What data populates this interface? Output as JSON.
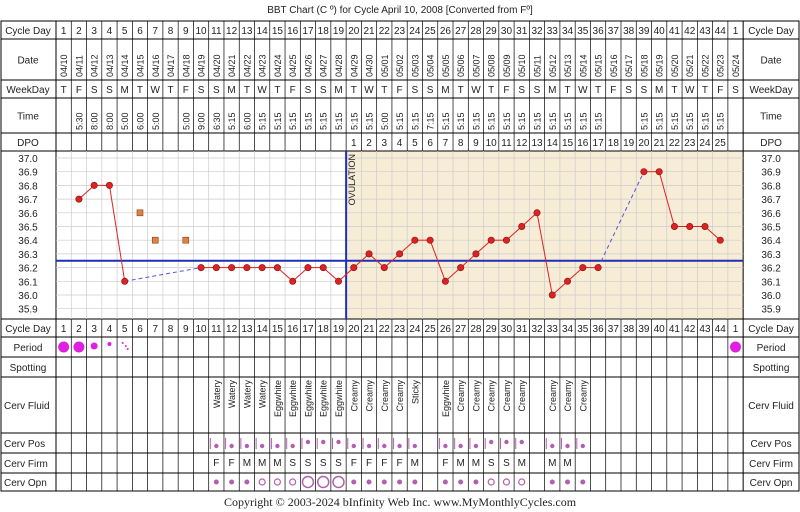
{
  "title": "BBT Chart (C º) for Cycle April 10, 2008  [Converted from Fº]",
  "footer": "Copyright © 2003-2024 bInfinity Web Inc.     www.MyMonthlyCycles.com",
  "row_labels": {
    "cycle_day": "Cycle Day",
    "date": "Date",
    "weekday": "WeekDay",
    "time": "Time",
    "dpo": "DPO",
    "period": "Period",
    "spotting": "Spotting",
    "cerv_fluid": "Cerv Fluid",
    "cerv_pos": "Cerv Pos",
    "cerv_firm": "Cerv Firm",
    "cerv_opn": "Cerv Opn"
  },
  "ovulation_label": "OVULATION",
  "colors": {
    "line": "#dd2222",
    "dot": "#dd2222",
    "coverline": "#1e2fb8",
    "ovulation_line": "#1e2fb8",
    "luteal_bg": "#f7ecd6",
    "grid": "#cccccc",
    "period": "#e020e0",
    "cerv": "#b060b0",
    "open_marker": "#e08040"
  },
  "chart_data": {
    "type": "line",
    "cycle_days": [
      1,
      2,
      3,
      4,
      5,
      6,
      7,
      8,
      9,
      10,
      11,
      12,
      13,
      14,
      15,
      16,
      17,
      18,
      19,
      20,
      21,
      22,
      23,
      24,
      25,
      26,
      27,
      28,
      29,
      30,
      31,
      32,
      33,
      34,
      35,
      36,
      37,
      38,
      39,
      40,
      41,
      42,
      43,
      44,
      1
    ],
    "dates": [
      "04/10",
      "04/11",
      "04/12",
      "04/13",
      "04/14",
      "04/15",
      "04/16",
      "04/17",
      "04/18",
      "04/19",
      "04/20",
      "04/21",
      "04/22",
      "04/23",
      "04/24",
      "04/25",
      "04/26",
      "04/27",
      "04/28",
      "04/29",
      "04/30",
      "05/01",
      "05/02",
      "05/03",
      "05/04",
      "05/05",
      "05/06",
      "05/07",
      "05/08",
      "05/09",
      "05/10",
      "05/11",
      "05/12",
      "05/13",
      "05/14",
      "05/15",
      "05/16",
      "05/17",
      "05/18",
      "05/19",
      "05/20",
      "05/21",
      "05/22",
      "05/23",
      "05/24"
    ],
    "weekdays": [
      "T",
      "F",
      "S",
      "S",
      "M",
      "T",
      "W",
      "T",
      "F",
      "S",
      "S",
      "M",
      "T",
      "W",
      "T",
      "F",
      "S",
      "S",
      "M",
      "T",
      "W",
      "T",
      "F",
      "S",
      "S",
      "M",
      "T",
      "W",
      "T",
      "F",
      "S",
      "S",
      "M",
      "T",
      "W",
      "T",
      "F",
      "S",
      "S",
      "M",
      "T",
      "W",
      "T",
      "F",
      "S"
    ],
    "times": [
      "",
      "5:30",
      "8:00",
      "8:00",
      "5:00",
      "6:00",
      "5:00",
      "",
      "5:00",
      "9:00",
      "6:30",
      "5:15",
      "6:00",
      "5:15",
      "5:15",
      "5:15",
      "5:15",
      "5:15",
      "5:15",
      "5:15",
      "5:15",
      "5:00",
      "5:15",
      "5:15",
      "7:15",
      "5:15",
      "5:15",
      "5:15",
      "5:15",
      "5:15",
      "5:15",
      "5:15",
      "5:15",
      "5:15",
      "5:15",
      "5:15",
      "",
      "",
      "5:15",
      "5:15",
      "5:15",
      "5:15",
      "5:15",
      "5:15",
      ""
    ],
    "dpo": [
      "",
      "",
      "",
      "",
      "",
      "",
      "",
      "",
      "",
      "",
      "",
      "",
      "",
      "",
      "",
      "",
      "",
      "",
      "",
      "1",
      "2",
      "3",
      "4",
      "5",
      "6",
      "7",
      "8",
      "9",
      "10",
      "11",
      "12",
      "13",
      "14",
      "15",
      "16",
      "17",
      "18",
      "19",
      "20",
      "21",
      "22",
      "23",
      "24",
      "25",
      ""
    ],
    "temps": [
      null,
      36.7,
      36.8,
      36.8,
      36.1,
      null,
      null,
      null,
      null,
      36.2,
      36.2,
      36.2,
      36.2,
      36.2,
      36.2,
      36.1,
      36.2,
      36.2,
      36.1,
      36.2,
      36.3,
      36.2,
      36.3,
      36.4,
      36.4,
      36.1,
      36.2,
      36.3,
      36.4,
      36.4,
      36.5,
      36.6,
      36.0,
      36.1,
      36.2,
      36.2,
      null,
      null,
      36.9,
      36.9,
      36.5,
      36.5,
      36.5,
      36.4,
      null
    ],
    "open_temps": [
      null,
      null,
      null,
      null,
      null,
      36.6,
      36.4,
      null,
      36.4,
      null,
      null,
      null,
      null,
      null,
      null,
      null,
      null,
      null,
      null,
      null,
      null,
      null,
      null,
      null,
      null,
      null,
      null,
      null,
      null,
      null,
      null,
      null,
      null,
      null,
      null,
      null,
      null,
      null,
      null,
      null,
      null,
      null,
      null,
      null,
      null
    ],
    "y_ticks": [
      "37.0",
      "36.9",
      "36.8",
      "36.7",
      "36.6",
      "36.5",
      "36.4",
      "36.3",
      "36.2",
      "36.1",
      "36.0",
      "35.9"
    ],
    "ylim": [
      35.9,
      37.0
    ],
    "coverline": 36.25,
    "ovulation_after_day": 19,
    "period": [
      3,
      3,
      2,
      1,
      4,
      0,
      0,
      0,
      0,
      0,
      0,
      0,
      0,
      0,
      0,
      0,
      0,
      0,
      0,
      0,
      0,
      0,
      0,
      0,
      0,
      0,
      0,
      0,
      0,
      0,
      0,
      0,
      0,
      0,
      0,
      0,
      0,
      0,
      0,
      0,
      0,
      0,
      0,
      0,
      3
    ],
    "cerv_fluid": [
      "",
      "",
      "",
      "",
      "",
      "",
      "",
      "",
      "",
      "",
      "Watery",
      "Watery",
      "Watery",
      "Watery",
      "Eggwhite",
      "Eggwhite",
      "Eggwhite",
      "Eggwhite",
      "Eggwhite",
      "Creamy",
      "Creamy",
      "Creamy",
      "Creamy",
      "Sticky",
      "",
      "Eggwhite",
      "Creamy",
      "Creamy",
      "Creamy",
      "Creamy",
      "Creamy",
      "",
      "Creamy",
      "Creamy",
      "Creamy",
      "",
      "",
      "",
      "",
      "",
      "",
      "",
      "",
      "",
      ""
    ],
    "cerv_pos": [
      0,
      0,
      0,
      0,
      0,
      0,
      0,
      0,
      0,
      0,
      1,
      1,
      1,
      1,
      1,
      1,
      2,
      2,
      2,
      1,
      1,
      1,
      1,
      1,
      0,
      1,
      1,
      1,
      2,
      2,
      2,
      0,
      1,
      1,
      1,
      0,
      0,
      0,
      0,
      0,
      0,
      0,
      0,
      0,
      0
    ],
    "cerv_firm": [
      "",
      "",
      "",
      "",
      "",
      "",
      "",
      "",
      "",
      "",
      "F",
      "F",
      "M",
      "M",
      "M",
      "S",
      "S",
      "S",
      "S",
      "F",
      "F",
      "F",
      "F",
      "M",
      "",
      "F",
      "M",
      "M",
      "S",
      "S",
      "M",
      "",
      "M",
      "M",
      "",
      "",
      "",
      "",
      "",
      "",
      "",
      "",
      "",
      "",
      ""
    ],
    "cerv_opn": [
      0,
      0,
      0,
      0,
      0,
      0,
      0,
      0,
      0,
      0,
      1,
      1,
      1,
      2,
      2,
      2,
      3,
      3,
      3,
      1,
      1,
      1,
      1,
      1,
      0,
      1,
      1,
      1,
      2,
      2,
      2,
      0,
      1,
      1,
      1,
      0,
      0,
      0,
      0,
      0,
      0,
      0,
      0,
      0,
      0
    ]
  }
}
